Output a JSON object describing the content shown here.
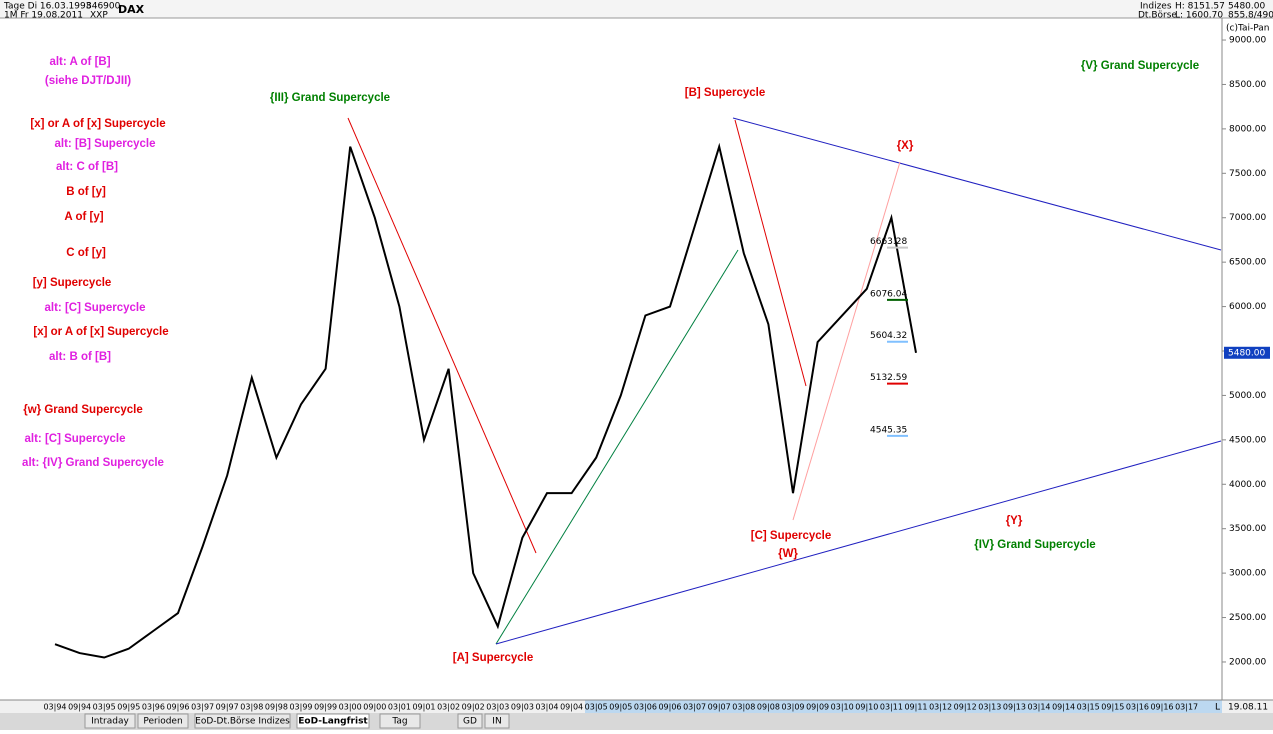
{
  "header": {
    "left1": "Tage Di 16.03.1993",
    "left2": "1M  Fr 19.08.2011",
    "code": "846900",
    "xxp": "XXP",
    "symbol": "DAX",
    "group": "Indizes",
    "exchange": "Dt.Börse",
    "high": "H: 8151.57",
    "low": "L: 1600.70",
    "last_price": "5480.00",
    "range": "855.8/490",
    "copyright": "(c)Tai-Pan",
    "date": "19.08.11",
    "scale_mode": "L"
  },
  "tabs": [
    "Intraday",
    "Perioden",
    "EoD-Dt.Börse Indizes",
    "EoD-Langfrist",
    "Tag",
    "GD",
    "IN"
  ],
  "chart_data": {
    "type": "line",
    "categories": [
      "03|94",
      "09|94",
      "03|95",
      "09|95",
      "03|96",
      "09|96",
      "03|97",
      "09|97",
      "03|98",
      "09|98",
      "03|99",
      "09|99",
      "03|00",
      "09|00",
      "03|01",
      "09|01",
      "03|02",
      "09|02",
      "03|03",
      "09|03",
      "03|04",
      "09|04",
      "03|05",
      "09|05",
      "03|06",
      "09|06",
      "03|07",
      "09|07",
      "03|08",
      "09|08",
      "03|09",
      "09|09",
      "03|10",
      "09|10",
      "03|11",
      "09|11",
      "03|12",
      "09|12",
      "03|13",
      "09|13",
      "03|14",
      "09|14",
      "03|15",
      "09|15",
      "03|16",
      "09|16",
      "03|17"
    ],
    "series": [
      {
        "name": "DAX",
        "color": "#000000",
        "values": [
          2200,
          2100,
          2050,
          2150,
          2350,
          2550,
          3300,
          4100,
          5200,
          4300,
          4900,
          5300,
          7800,
          7000,
          6000,
          4500,
          5300,
          3000,
          2400,
          3400,
          3900,
          3900,
          4300,
          5000,
          5900,
          6000,
          6900,
          7800,
          6600,
          5800,
          3900,
          5600,
          5900,
          6200,
          7000,
          5480,
          null,
          null,
          null,
          null,
          null,
          null,
          null,
          null,
          null,
          null,
          null
        ]
      }
    ],
    "ylim": [
      1572,
      9248
    ],
    "yticks": [
      {
        "value": 2000,
        "label": "2000.00"
      },
      {
        "value": 2500,
        "label": "2500.00"
      },
      {
        "value": 3000,
        "label": "3000.00"
      },
      {
        "value": 3500,
        "label": "3500.00"
      },
      {
        "value": 4000,
        "label": "4000.00"
      },
      {
        "value": 4500,
        "label": "4500.00"
      },
      {
        "value": 5000,
        "label": "5000.00"
      },
      {
        "value": 5500,
        "label": "5500.00"
      },
      {
        "value": 6000,
        "label": "6000.00"
      },
      {
        "value": 6500,
        "label": "6500.00"
      },
      {
        "value": 7000,
        "label": "7000.00"
      },
      {
        "value": 7500,
        "label": "7500.00"
      },
      {
        "value": 8000,
        "label": "8000.00"
      },
      {
        "value": 8500,
        "label": "8500.00"
      },
      {
        "value": 9000,
        "label": "9000.00"
      }
    ],
    "levels": [
      {
        "value": 6663.28,
        "color": "#c8c8c8"
      },
      {
        "value": 6076.04,
        "color": "#006000"
      },
      {
        "value": 5604.32,
        "color": "#80c0ff"
      },
      {
        "value": 5132.59,
        "color": "#e00000"
      },
      {
        "value": 4545.35,
        "color": "#80c0ff"
      }
    ],
    "annotations": [
      {
        "text": "alt: A of [B]",
        "color": "#e020e0"
      },
      {
        "text": "(siehe DJT/DJII)",
        "color": "#e020e0"
      },
      {
        "text": "[x] or A of [x] Supercycle",
        "color": "#e00000"
      },
      {
        "text": "alt: [B] Supercycle",
        "color": "#e020e0"
      },
      {
        "text": "alt: C of [B]",
        "color": "#e020e0"
      },
      {
        "text": "B of [y]",
        "color": "#e00000"
      },
      {
        "text": "A of [y]",
        "color": "#e00000"
      },
      {
        "text": "C of [y]",
        "color": "#e00000"
      },
      {
        "text": "[y] Supercycle",
        "color": "#e00000"
      },
      {
        "text": "alt: [C] Supercycle",
        "color": "#e020e0"
      },
      {
        "text": "[x] or A of [x] Supercycle",
        "color": "#e00000"
      },
      {
        "text": "alt: B of [B]",
        "color": "#e020e0"
      },
      {
        "text": "{w} Grand Supercycle",
        "color": "#e00000"
      },
      {
        "text": "alt: [C] Supercycle",
        "color": "#e020e0"
      },
      {
        "text": "alt: {IV} Grand Supercycle",
        "color": "#e020e0"
      },
      {
        "text": "{III} Grand Supercycle",
        "color": "#008000"
      },
      {
        "text": "[B] Supercycle",
        "color": "#e00000"
      },
      {
        "text": "{X}",
        "color": "#e00000"
      },
      {
        "text": "{V} Grand Supercycle",
        "color": "#008000"
      },
      {
        "text": "[A] Supercycle",
        "color": "#e00000"
      },
      {
        "text": "[C] Supercycle",
        "color": "#e00000"
      },
      {
        "text": "{W}",
        "color": "#e00000"
      },
      {
        "text": "{Y}",
        "color": "#e00000"
      },
      {
        "text": "{IV} Grand Supercycle",
        "color": "#008000"
      }
    ]
  }
}
